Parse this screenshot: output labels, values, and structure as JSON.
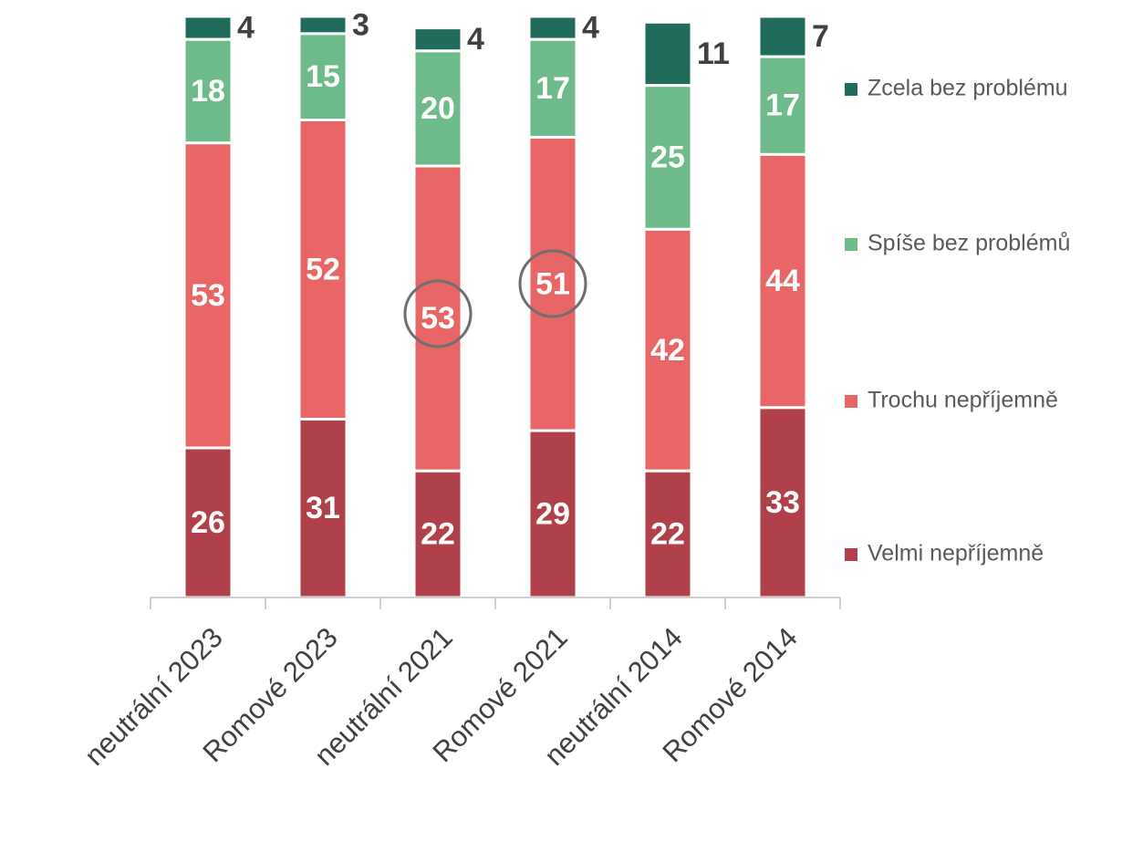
{
  "chart_data": {
    "type": "bar",
    "stacked": true,
    "categories": [
      "neutrální 2023",
      "Romové 2023",
      "neutrální 2021",
      "Romové 2021",
      "neutrální 2014",
      "Romové 2014"
    ],
    "series": [
      {
        "name": "Velmi nepříjemně",
        "color": "#b0404a",
        "values": [
          26,
          31,
          22,
          29,
          22,
          33
        ]
      },
      {
        "name": "Trochu nepříjemně",
        "color": "#e96666",
        "values": [
          53,
          52,
          53,
          51,
          42,
          44
        ]
      },
      {
        "name": "Spíše bez problémů",
        "color": "#6dbb8a",
        "values": [
          18,
          15,
          20,
          17,
          25,
          17
        ]
      },
      {
        "name": "Zcela bez problému",
        "color": "#206b5c",
        "values": [
          4,
          3,
          4,
          4,
          11,
          7
        ]
      }
    ],
    "ylim": [
      0,
      101
    ],
    "legend": "right"
  }
}
